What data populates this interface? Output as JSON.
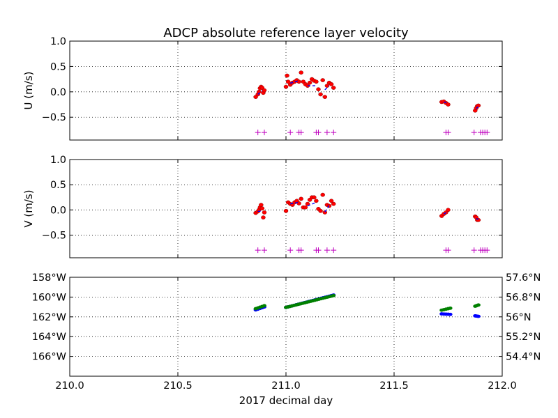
{
  "title": "ADCP absolute reference layer velocity",
  "xlabel": "2017 decimal day",
  "colors": {
    "dot_red": "#ff0000",
    "dot_blue": "#0000ff",
    "dot_green": "#008000",
    "plus_magenta": "#bf00bf",
    "lon_axis": "#0000ff",
    "lat_axis": "#008000"
  },
  "chart_data": [
    {
      "type": "scatter",
      "ylabel": "U (m/s)",
      "xlim": [
        210.0,
        212.0
      ],
      "ylim": [
        -0.95,
        1.0
      ],
      "xticks": [
        210.0,
        210.5,
        211.0,
        211.5,
        212.0
      ],
      "xtick_labels": [
        "210.0",
        "210.5",
        "211.0",
        "211.5",
        "212.0"
      ],
      "yticks": [
        1.0,
        0.5,
        0.0,
        -0.5
      ],
      "ytick_labels": [
        "1.0",
        "0.5",
        "0.0",
        "−0.5"
      ],
      "grid": true,
      "series": [
        {
          "style": "red-dots",
          "points": [
            [
              210.86,
              -0.1
            ],
            [
              210.87,
              -0.05
            ],
            [
              210.875,
              0.0
            ],
            [
              210.88,
              0.07
            ],
            [
              210.885,
              0.1
            ],
            [
              210.89,
              0.08
            ],
            [
              210.895,
              -0.02
            ],
            [
              210.9,
              0.03
            ],
            [
              211.0,
              0.1
            ],
            [
              211.005,
              0.32
            ],
            [
              211.01,
              0.2
            ],
            [
              211.02,
              0.14
            ],
            [
              211.03,
              0.18
            ],
            [
              211.04,
              0.2
            ],
            [
              211.05,
              0.23
            ],
            [
              211.06,
              0.2
            ],
            [
              211.07,
              0.38
            ],
            [
              211.08,
              0.2
            ],
            [
              211.09,
              0.15
            ],
            [
              211.1,
              0.12
            ],
            [
              211.11,
              0.18
            ],
            [
              211.12,
              0.25
            ],
            [
              211.13,
              0.22
            ],
            [
              211.14,
              0.2
            ],
            [
              211.15,
              0.05
            ],
            [
              211.16,
              -0.05
            ],
            [
              211.17,
              0.23
            ],
            [
              211.18,
              -0.1
            ],
            [
              211.19,
              0.12
            ],
            [
              211.2,
              0.18
            ],
            [
              211.21,
              0.15
            ],
            [
              211.22,
              0.08
            ],
            [
              211.72,
              -0.2
            ],
            [
              211.73,
              -0.19
            ],
            [
              211.74,
              -0.22
            ],
            [
              211.75,
              -0.25
            ],
            [
              211.875,
              -0.37
            ],
            [
              211.88,
              -0.32
            ],
            [
              211.885,
              -0.28
            ],
            [
              211.89,
              -0.27
            ]
          ]
        },
        {
          "style": "blue-dashed",
          "points": [
            [
              210.87,
              -0.05
            ],
            [
              210.89,
              0.02
            ],
            [
              211.02,
              0.17
            ],
            [
              211.06,
              0.22
            ],
            [
              211.1,
              0.12
            ],
            [
              211.14,
              0.12
            ],
            [
              211.18,
              0.04
            ],
            [
              211.2,
              0.12
            ],
            [
              211.73,
              -0.2
            ],
            [
              211.75,
              -0.23
            ],
            [
              211.88,
              -0.33
            ],
            [
              211.89,
              -0.29
            ]
          ]
        },
        {
          "style": "magenta-plus",
          "points": [
            [
              210.87,
              -0.8
            ],
            [
              210.9,
              -0.8
            ],
            [
              211.02,
              -0.8
            ],
            [
              211.06,
              -0.8
            ],
            [
              211.07,
              -0.8
            ],
            [
              211.14,
              -0.8
            ],
            [
              211.15,
              -0.8
            ],
            [
              211.19,
              -0.8
            ],
            [
              211.22,
              -0.8
            ],
            [
              211.74,
              -0.8
            ],
            [
              211.75,
              -0.8
            ],
            [
              211.87,
              -0.8
            ],
            [
              211.9,
              -0.8
            ],
            [
              211.91,
              -0.8
            ],
            [
              211.92,
              -0.8
            ],
            [
              211.93,
              -0.8
            ]
          ]
        }
      ]
    },
    {
      "type": "scatter",
      "ylabel": "V (m/s)",
      "xlim": [
        210.0,
        212.0
      ],
      "ylim": [
        -0.95,
        1.0
      ],
      "xticks": [
        210.0,
        210.5,
        211.0,
        211.5,
        212.0
      ],
      "xtick_labels": [
        "210.0",
        "210.5",
        "211.0",
        "211.5",
        "212.0"
      ],
      "yticks": [
        1.0,
        0.5,
        0.0,
        -0.5
      ],
      "ytick_labels": [
        "1.0",
        "0.5",
        "0.0",
        "−0.5"
      ],
      "grid": true,
      "series": [
        {
          "style": "red-dots",
          "points": [
            [
              210.86,
              -0.06
            ],
            [
              210.87,
              -0.03
            ],
            [
              210.875,
              0.0
            ],
            [
              210.88,
              0.05
            ],
            [
              210.885,
              0.1
            ],
            [
              210.89,
              0.03
            ],
            [
              210.895,
              -0.15
            ],
            [
              210.9,
              -0.05
            ],
            [
              211.0,
              -0.02
            ],
            [
              211.01,
              0.15
            ],
            [
              211.02,
              0.12
            ],
            [
              211.03,
              0.1
            ],
            [
              211.04,
              0.15
            ],
            [
              211.05,
              0.18
            ],
            [
              211.06,
              0.13
            ],
            [
              211.07,
              0.22
            ],
            [
              211.08,
              0.05
            ],
            [
              211.09,
              0.05
            ],
            [
              211.1,
              0.12
            ],
            [
              211.11,
              0.2
            ],
            [
              211.12,
              0.25
            ],
            [
              211.13,
              0.25
            ],
            [
              211.14,
              0.18
            ],
            [
              211.15,
              0.02
            ],
            [
              211.16,
              -0.02
            ],
            [
              211.17,
              0.3
            ],
            [
              211.18,
              -0.05
            ],
            [
              211.19,
              0.1
            ],
            [
              211.2,
              0.08
            ],
            [
              211.21,
              0.18
            ],
            [
              211.22,
              0.12
            ],
            [
              211.72,
              -0.12
            ],
            [
              211.73,
              -0.08
            ],
            [
              211.74,
              -0.05
            ],
            [
              211.75,
              0.0
            ],
            [
              211.875,
              -0.13
            ],
            [
              211.88,
              -0.15
            ],
            [
              211.885,
              -0.2
            ],
            [
              211.89,
              -0.2
            ]
          ]
        },
        {
          "style": "blue-dashed",
          "points": [
            [
              210.87,
              -0.03
            ],
            [
              210.89,
              -0.02
            ],
            [
              211.02,
              0.12
            ],
            [
              211.06,
              0.15
            ],
            [
              211.1,
              0.08
            ],
            [
              211.14,
              0.15
            ],
            [
              211.18,
              -0.04
            ],
            [
              211.2,
              0.09
            ],
            [
              211.73,
              -0.08
            ],
            [
              211.75,
              -0.03
            ],
            [
              211.88,
              -0.17
            ],
            [
              211.89,
              -0.19
            ]
          ]
        },
        {
          "style": "magenta-plus",
          "points": [
            [
              210.87,
              -0.8
            ],
            [
              210.9,
              -0.8
            ],
            [
              211.02,
              -0.8
            ],
            [
              211.06,
              -0.8
            ],
            [
              211.07,
              -0.8
            ],
            [
              211.14,
              -0.8
            ],
            [
              211.15,
              -0.8
            ],
            [
              211.19,
              -0.8
            ],
            [
              211.22,
              -0.8
            ],
            [
              211.74,
              -0.8
            ],
            [
              211.75,
              -0.8
            ],
            [
              211.87,
              -0.8
            ],
            [
              211.9,
              -0.8
            ],
            [
              211.91,
              -0.8
            ],
            [
              211.92,
              -0.8
            ],
            [
              211.93,
              -0.8
            ]
          ]
        }
      ]
    },
    {
      "type": "scatter",
      "xlim": [
        210.0,
        212.0
      ],
      "xticks": [
        210.0,
        210.5,
        211.0,
        211.5,
        212.0
      ],
      "xtick_labels": [
        "210.0",
        "210.5",
        "211.0",
        "211.5",
        "212.0"
      ],
      "grid": true,
      "y_left": {
        "label_color": "#0000ff",
        "ylim": [
          -168.0,
          -158.0
        ],
        "yticks": [
          -158,
          -160,
          -162,
          -164,
          -166
        ],
        "ytick_labels": [
          "158°W",
          "160°W",
          "162°W",
          "164°W",
          "166°W"
        ]
      },
      "y_right": {
        "label_color": "#008000",
        "ylim": [
          53.6,
          57.6
        ],
        "yticks": [
          57.6,
          56.8,
          56.0,
          55.2,
          54.4
        ],
        "ytick_labels": [
          "57.6°N",
          "56.8°N",
          "56°N",
          "55.2°N",
          "54.4°N"
        ]
      },
      "series": [
        {
          "name": "longitude",
          "axis": "left",
          "color": "#0000ff",
          "segments": [
            [
              210.86,
              210.9,
              -161.3,
              -161.0
            ],
            [
              211.0,
              211.22,
              -161.05,
              -159.8
            ],
            [
              211.72,
              211.76,
              -161.7,
              -161.75
            ],
            [
              211.875,
              211.89,
              -161.9,
              -161.95
            ]
          ]
        },
        {
          "name": "latitude",
          "axis": "right",
          "color": "#008000",
          "segments": [
            [
              210.86,
              210.9,
              56.33,
              56.45
            ],
            [
              211.0,
              211.22,
              56.38,
              56.86
            ],
            [
              211.72,
              211.76,
              56.27,
              56.35
            ],
            [
              211.875,
              211.89,
              56.43,
              56.48
            ]
          ]
        }
      ]
    }
  ]
}
